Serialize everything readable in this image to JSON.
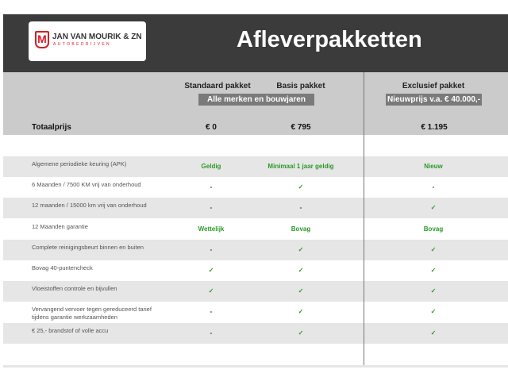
{
  "logo": {
    "mark": "M",
    "name": "JAN VAN MOURIK & ZN",
    "sub": "AUTOBEDRIJVEN",
    "brand_color": "#d42027"
  },
  "title": "Afleverpakketten",
  "columns": [
    {
      "name": "Standaard pakket",
      "price": "€ 0"
    },
    {
      "name": "Basis pakket",
      "price": "€ 795"
    },
    {
      "name": "Exclusief pakket",
      "price": "€ 1.195"
    }
  ],
  "pill_standard_basis": "Alle merken en bouwjaren",
  "pill_exclusive": "Nieuwprijs v.a. € 40.000,-",
  "total_label": "Totaalprijs",
  "check_color": "#2a9a2a",
  "rows": [
    {
      "label": "Algemene periodieke keuring (APK)",
      "values": [
        "Geldig",
        "Minimaal 1 jaar geldig",
        "Nieuw"
      ]
    },
    {
      "label": "6 Maanden / 7500 KM vrij van onderhoud",
      "values": [
        "-",
        "✓",
        "-"
      ]
    },
    {
      "label": "12 maanden / 15000 km vrij van onderhoud",
      "values": [
        "-",
        "-",
        "✓"
      ]
    },
    {
      "label": "12 Maanden  garantie",
      "values": [
        "Wettelijk",
        "Bovag",
        "Bovag"
      ]
    },
    {
      "label": "Complete reinigingsbeurt binnen en buiten",
      "values": [
        "-",
        "✓",
        "✓"
      ]
    },
    {
      "label": "Bovag 40-puntencheck",
      "values": [
        "✓",
        "✓",
        "✓"
      ]
    },
    {
      "label": "Vloeistoffen controle en bijvullen",
      "values": [
        "✓",
        "✓",
        "✓"
      ]
    },
    {
      "label": "Vervangend vervoer tegen gereduceerd tarief tijdens garantie werkzaamheden",
      "values": [
        "-",
        "✓",
        "✓"
      ]
    },
    {
      "label": "€ 25,- brandstof of  volle accu",
      "values": [
        "-",
        "✓",
        "✓"
      ]
    }
  ]
}
